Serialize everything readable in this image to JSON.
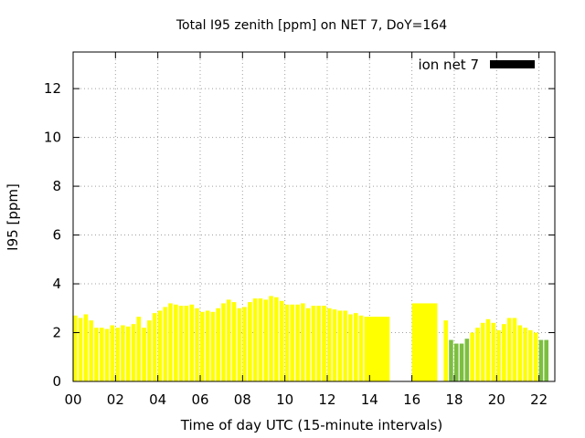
{
  "chart_data": {
    "type": "bar",
    "title": "Total I95 zenith [ppm] on NET 7, DoY=164",
    "xlabel": "Time of day UTC (15-minute intervals)",
    "ylabel": "I95 [ppm]",
    "xlim": [
      0,
      22.75
    ],
    "ylim": [
      0,
      13.5
    ],
    "xticks": [
      {
        "value": 0,
        "label": "00"
      },
      {
        "value": 2,
        "label": "02"
      },
      {
        "value": 4,
        "label": "04"
      },
      {
        "value": 6,
        "label": "06"
      },
      {
        "value": 8,
        "label": "08"
      },
      {
        "value": 10,
        "label": "10"
      },
      {
        "value": 12,
        "label": "12"
      },
      {
        "value": 14,
        "label": "14"
      },
      {
        "value": 16,
        "label": "16"
      },
      {
        "value": 18,
        "label": "18"
      },
      {
        "value": 20,
        "label": "20"
      },
      {
        "value": 22,
        "label": "22"
      }
    ],
    "yticks": [
      {
        "value": 0,
        "label": "0"
      },
      {
        "value": 2,
        "label": "2"
      },
      {
        "value": 4,
        "label": "4"
      },
      {
        "value": 6,
        "label": "6"
      },
      {
        "value": 8,
        "label": "8"
      },
      {
        "value": 10,
        "label": "10"
      },
      {
        "value": 12,
        "label": "12"
      }
    ],
    "grid": true,
    "legend": {
      "placement": "top-right",
      "entries": [
        {
          "label": "ion net 7",
          "color": "#000000"
        }
      ]
    },
    "colors": {
      "high": "#ffff00",
      "low": "#7cbf3f"
    },
    "bars": [
      {
        "t": 0.0,
        "v": 2.7,
        "c": "high"
      },
      {
        "t": 0.25,
        "v": 2.6,
        "c": "high"
      },
      {
        "t": 0.5,
        "v": 2.75,
        "c": "high"
      },
      {
        "t": 0.75,
        "v": 2.5,
        "c": "high"
      },
      {
        "t": 1.0,
        "v": 2.2,
        "c": "high"
      },
      {
        "t": 1.25,
        "v": 2.2,
        "c": "high"
      },
      {
        "t": 1.5,
        "v": 2.15,
        "c": "high"
      },
      {
        "t": 1.75,
        "v": 2.3,
        "c": "high"
      },
      {
        "t": 2.0,
        "v": 2.2,
        "c": "high"
      },
      {
        "t": 2.25,
        "v": 2.3,
        "c": "high"
      },
      {
        "t": 2.5,
        "v": 2.25,
        "c": "high"
      },
      {
        "t": 2.75,
        "v": 2.35,
        "c": "high"
      },
      {
        "t": 3.0,
        "v": 2.65,
        "c": "high"
      },
      {
        "t": 3.25,
        "v": 2.2,
        "c": "high"
      },
      {
        "t": 3.5,
        "v": 2.5,
        "c": "high"
      },
      {
        "t": 3.75,
        "v": 2.8,
        "c": "high"
      },
      {
        "t": 4.0,
        "v": 2.9,
        "c": "high"
      },
      {
        "t": 4.25,
        "v": 3.05,
        "c": "high"
      },
      {
        "t": 4.5,
        "v": 3.2,
        "c": "high"
      },
      {
        "t": 4.75,
        "v": 3.15,
        "c": "high"
      },
      {
        "t": 5.0,
        "v": 3.1,
        "c": "high"
      },
      {
        "t": 5.25,
        "v": 3.1,
        "c": "high"
      },
      {
        "t": 5.5,
        "v": 3.15,
        "c": "high"
      },
      {
        "t": 5.75,
        "v": 3.0,
        "c": "high"
      },
      {
        "t": 6.0,
        "v": 2.85,
        "c": "high"
      },
      {
        "t": 6.25,
        "v": 2.9,
        "c": "high"
      },
      {
        "t": 6.5,
        "v": 2.85,
        "c": "high"
      },
      {
        "t": 6.75,
        "v": 3.0,
        "c": "high"
      },
      {
        "t": 7.0,
        "v": 3.2,
        "c": "high"
      },
      {
        "t": 7.25,
        "v": 3.35,
        "c": "high"
      },
      {
        "t": 7.5,
        "v": 3.25,
        "c": "high"
      },
      {
        "t": 7.75,
        "v": 3.0,
        "c": "high"
      },
      {
        "t": 8.0,
        "v": 3.05,
        "c": "high"
      },
      {
        "t": 8.25,
        "v": 3.25,
        "c": "high"
      },
      {
        "t": 8.5,
        "v": 3.4,
        "c": "high"
      },
      {
        "t": 8.75,
        "v": 3.4,
        "c": "high"
      },
      {
        "t": 9.0,
        "v": 3.35,
        "c": "high"
      },
      {
        "t": 9.25,
        "v": 3.5,
        "c": "high"
      },
      {
        "t": 9.5,
        "v": 3.45,
        "c": "high"
      },
      {
        "t": 9.75,
        "v": 3.3,
        "c": "high"
      },
      {
        "t": 10.0,
        "v": 3.15,
        "c": "high"
      },
      {
        "t": 10.25,
        "v": 3.15,
        "c": "high"
      },
      {
        "t": 10.5,
        "v": 3.15,
        "c": "high"
      },
      {
        "t": 10.75,
        "v": 3.2,
        "c": "high"
      },
      {
        "t": 11.0,
        "v": 3.0,
        "c": "high"
      },
      {
        "t": 11.25,
        "v": 3.1,
        "c": "high"
      },
      {
        "t": 11.5,
        "v": 3.1,
        "c": "high"
      },
      {
        "t": 11.75,
        "v": 3.1,
        "c": "high"
      },
      {
        "t": 12.0,
        "v": 3.0,
        "c": "high"
      },
      {
        "t": 12.25,
        "v": 2.95,
        "c": "high"
      },
      {
        "t": 12.5,
        "v": 2.9,
        "c": "high"
      },
      {
        "t": 12.75,
        "v": 2.9,
        "c": "high"
      },
      {
        "t": 13.0,
        "v": 2.75,
        "c": "high"
      },
      {
        "t": 13.25,
        "v": 2.8,
        "c": "high"
      },
      {
        "t": 13.5,
        "v": 2.7,
        "c": "high"
      },
      {
        "t": 13.75,
        "v": 2.65,
        "c": "high",
        "w": 1.25
      },
      {
        "t": 16.0,
        "v": 3.2,
        "c": "high",
        "w": 1.25
      },
      {
        "t": 17.5,
        "v": 2.5,
        "c": "high"
      },
      {
        "t": 17.75,
        "v": 1.7,
        "c": "low"
      },
      {
        "t": 18.0,
        "v": 1.55,
        "c": "low"
      },
      {
        "t": 18.25,
        "v": 1.55,
        "c": "low"
      },
      {
        "t": 18.5,
        "v": 1.75,
        "c": "low"
      },
      {
        "t": 18.75,
        "v": 2.0,
        "c": "high"
      },
      {
        "t": 19.0,
        "v": 2.2,
        "c": "high"
      },
      {
        "t": 19.25,
        "v": 2.4,
        "c": "high"
      },
      {
        "t": 19.5,
        "v": 2.55,
        "c": "high"
      },
      {
        "t": 19.75,
        "v": 2.4,
        "c": "high"
      },
      {
        "t": 20.0,
        "v": 2.1,
        "c": "high"
      },
      {
        "t": 20.25,
        "v": 2.35,
        "c": "high"
      },
      {
        "t": 20.5,
        "v": 2.6,
        "c": "high"
      },
      {
        "t": 20.75,
        "v": 2.6,
        "c": "high"
      },
      {
        "t": 21.0,
        "v": 2.3,
        "c": "high"
      },
      {
        "t": 21.25,
        "v": 2.2,
        "c": "high"
      },
      {
        "t": 21.5,
        "v": 2.1,
        "c": "high"
      },
      {
        "t": 21.75,
        "v": 2.0,
        "c": "high"
      },
      {
        "t": 22.0,
        "v": 1.7,
        "c": "low"
      },
      {
        "t": 22.25,
        "v": 1.7,
        "c": "low"
      }
    ]
  }
}
